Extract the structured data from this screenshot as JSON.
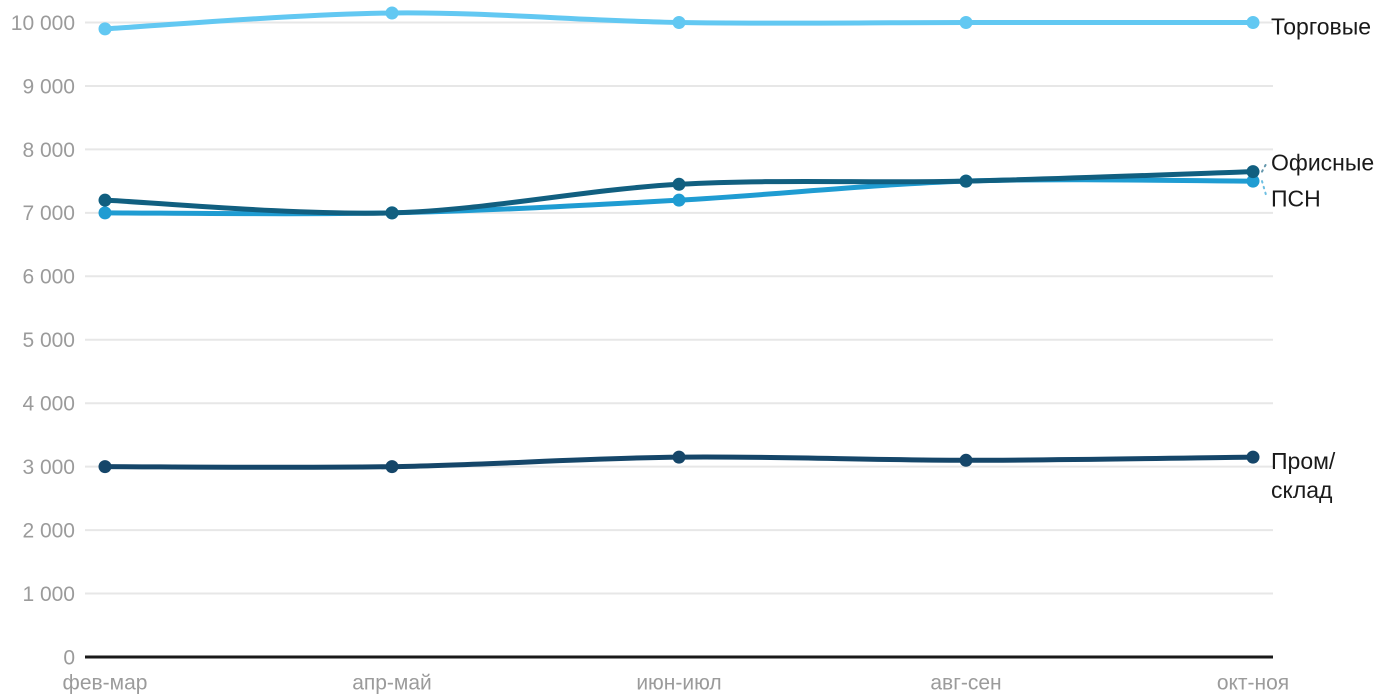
{
  "chart_data": {
    "type": "line",
    "title": "",
    "xlabel": "",
    "ylabel": "",
    "categories": [
      "фев-мар",
      "апр-май",
      "июн-июл",
      "авг-сен",
      "окт-ноя"
    ],
    "series": [
      {
        "name": "Торговые",
        "slug": "torgovye",
        "color": "#62c8f2",
        "label_lines": [
          "Торговые"
        ],
        "values": [
          9900,
          10150,
          10000,
          10000,
          10000
        ]
      },
      {
        "name": "ПСН",
        "slug": "psn",
        "color": "#1f9cd2",
        "label_lines": [
          "ПСН"
        ],
        "values": [
          7000,
          7000,
          7200,
          7500,
          7500
        ]
      },
      {
        "name": "Офисные",
        "slug": "ofisnye",
        "color": "#115f80",
        "label_lines": [
          "Офисные"
        ],
        "values": [
          7200,
          7000,
          7450,
          7500,
          7650
        ]
      },
      {
        "name": "Пром/склад",
        "slug": "prom-sklad",
        "color": "#154669",
        "label_lines": [
          "Пром/",
          "склад"
        ],
        "values": [
          3000,
          3000,
          3150,
          3100,
          3150
        ]
      }
    ],
    "ylim": [
      0,
      10000
    ],
    "ytick_step": 1000,
    "ytick_labels": [
      "0",
      "1 000",
      "2 000",
      "3 000",
      "4 000",
      "5 000",
      "6 000",
      "7 000",
      "8 000",
      "9 000",
      "10 000"
    ],
    "grid": true,
    "legend_position": "right-edge-labels",
    "colors": {
      "gridline": "#e7e7e7",
      "axis_line": "#1a1a1a",
      "tick_text": "#9b9b9b",
      "label_text": "#1a1a1a",
      "background": "#ffffff"
    }
  }
}
